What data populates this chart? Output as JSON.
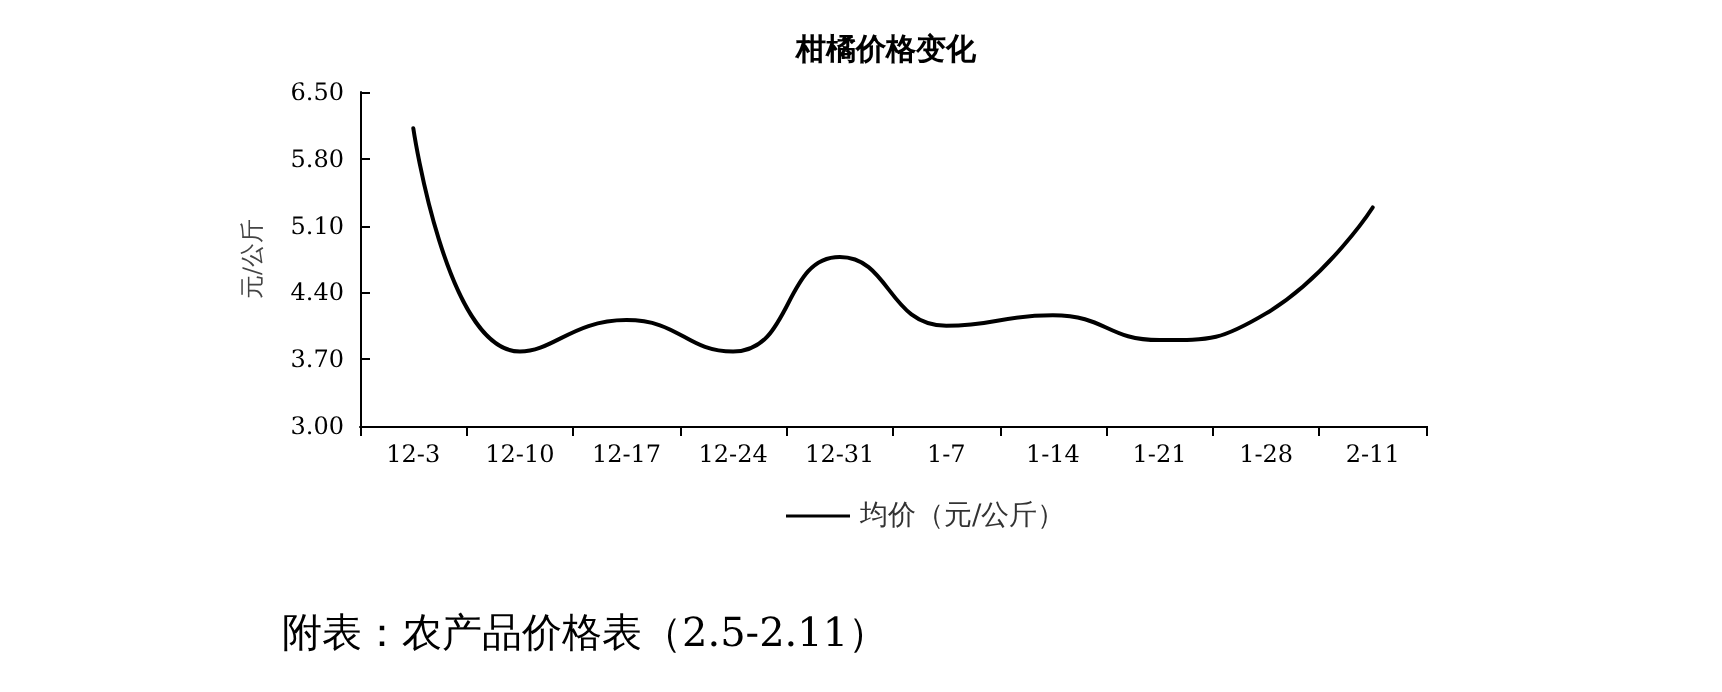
{
  "chart_data": {
    "type": "line",
    "title": "柑橘价格变化",
    "ylabel": "元/公斤",
    "categories": [
      "12-3",
      "12-10",
      "12-17",
      "12-24",
      "12-31",
      "1-7",
      "1-14",
      "1-21",
      "1-28",
      "2-11"
    ],
    "series": [
      {
        "name": "均价（元/公斤）",
        "color": "#000000",
        "values": [
          6.12,
          3.78,
          4.11,
          3.78,
          4.77,
          4.05,
          4.16,
          3.9,
          4.18,
          5.29
        ]
      }
    ],
    "ylim": [
      3.0,
      6.5
    ],
    "yticks": [
      {
        "value": 3.0,
        "label": "3.00"
      },
      {
        "value": 3.7,
        "label": "3.70"
      },
      {
        "value": 4.4,
        "label": "4.40"
      },
      {
        "value": 5.1,
        "label": "5.10"
      },
      {
        "value": 5.8,
        "label": "5.80"
      },
      {
        "value": 6.5,
        "label": "6.50"
      }
    ],
    "grid": false,
    "legend": "bottom",
    "marker": "none",
    "line_style": "solid",
    "annotations": [
      "附表：农产品价格表（2.5-2.11）"
    ]
  }
}
